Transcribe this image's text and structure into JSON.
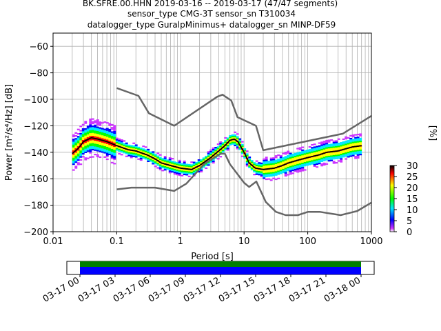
{
  "chart_data": {
    "type": "heatmap",
    "title": [
      "BK.SFRE.00.HHN   2019-03-16 -- 2019-03-17  (47/47 segments)",
      "sensor_type CMG-3T sensor_sn T310034",
      "datalogger_type GuralpMinimus+ datalogger_sn MINP-DF59"
    ],
    "xlabel": "Period [s]",
    "ylabel": "Power [m²/s⁴/Hz] [dB]",
    "x_scale": "log",
    "xlim": [
      0.01,
      1000
    ],
    "ylim": [
      -200,
      -50
    ],
    "x_ticks": [
      0.01,
      0.1,
      1,
      10,
      100,
      1000
    ],
    "x_tick_labels": [
      "0.01",
      "0.1",
      "1",
      "10",
      "100",
      "1000"
    ],
    "y_ticks": [
      -200,
      -180,
      -160,
      -140,
      -120,
      -100,
      -80,
      -60
    ],
    "y_tick_labels": [
      "−200",
      "−180",
      "−160",
      "−140",
      "−120",
      "−100",
      "−80",
      "−60"
    ],
    "grid": true,
    "colorbar": {
      "label": "[%]",
      "range": [
        0,
        30
      ],
      "ticks": [
        0,
        5,
        10,
        15,
        20,
        25,
        30
      ],
      "tick_labels": [
        "0",
        "5",
        "10",
        "15",
        "20",
        "25",
        "30"
      ],
      "colormap": [
        "#ffffff",
        "#cc33ff",
        "#0000ff",
        "#00e5ff",
        "#00ff00",
        "#ffff00",
        "#ff0000",
        "#000000"
      ]
    },
    "mean_curve": {
      "color": "#000000",
      "x": [
        0.02,
        0.025,
        0.03,
        0.04,
        0.05,
        0.07,
        0.1,
        0.15,
        0.2,
        0.3,
        0.4,
        0.5,
        0.7,
        1,
        1.5,
        2,
        3,
        4,
        5,
        6,
        7,
        8,
        10,
        12,
        15,
        20,
        30,
        40,
        50,
        70,
        100,
        150,
        200,
        300,
        500,
        700
      ],
      "y": [
        -141,
        -137,
        -132,
        -129,
        -130,
        -132,
        -135,
        -138,
        -139,
        -142,
        -145,
        -148,
        -150,
        -152,
        -153,
        -150,
        -144,
        -139,
        -135,
        -131,
        -130,
        -132,
        -140,
        -148,
        -152,
        -153,
        -152,
        -150,
        -148,
        -146,
        -144,
        -142,
        -140,
        -139,
        -136,
        -135
      ]
    },
    "nlnm": {
      "color": "#666666",
      "x": [
        0.1,
        0.17,
        0.4,
        0.8,
        1.24,
        2.4,
        4.3,
        5,
        6,
        10,
        12,
        15.6,
        21.9,
        31.6,
        45,
        70,
        101,
        154,
        328,
        600,
        1000
      ],
      "y": [
        -168,
        -166.7,
        -166.7,
        -169.2,
        -163.7,
        -148.6,
        -141.1,
        -141.1,
        -149,
        -163,
        -166.2,
        -162.1,
        -177.5,
        -185,
        -187.5,
        -187.5,
        -185,
        -185,
        -187.5,
        -184.4,
        -178
      ]
    },
    "nhnm": {
      "color": "#666666",
      "x": [
        0.1,
        0.22,
        0.32,
        0.8,
        3.8,
        4.6,
        6.3,
        7.9,
        15.4,
        20,
        354.8,
        1000
      ],
      "y": [
        -91.5,
        -97.4,
        -110.5,
        -120,
        -98,
        -96.5,
        -101,
        -113.5,
        -120,
        -138.5,
        -126,
        -112.5
      ]
    },
    "timeline": {
      "tick_labels": [
        "03-17 00",
        "03-17 03",
        "03-17 06",
        "03-17 09",
        "03-17 12",
        "03-17 15",
        "03-17 18",
        "03-17 21",
        "03-18 00"
      ],
      "data_coverage_color": "#0000ff",
      "psd_coverage_color": "#008000"
    }
  }
}
